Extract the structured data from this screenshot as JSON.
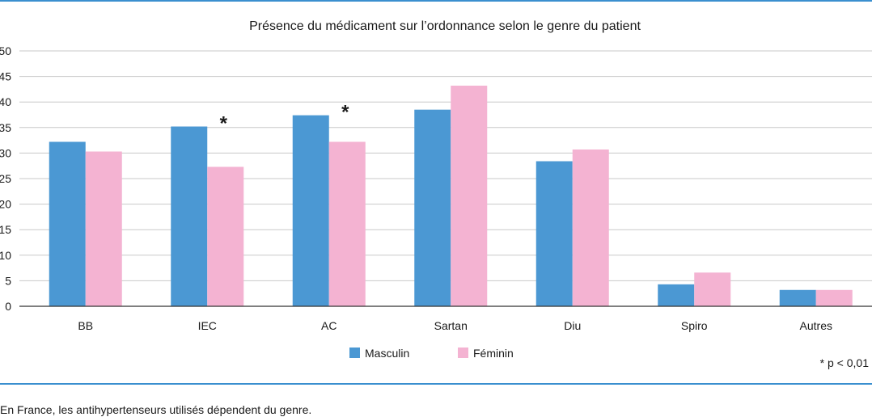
{
  "colors": {
    "rule": "#3a8fcf",
    "grid": "#c8c8c8",
    "axis": "#333333",
    "masculin": "#4b98d3",
    "feminin": "#f4b3d2"
  },
  "caption": "En France, les antihypertenseurs utilisés dépendent du genre.",
  "chart_data": {
    "type": "bar",
    "title": "Présence du médicament sur l’ordonnance selon le genre du patient",
    "categories": [
      "BB",
      "IEC",
      "AC",
      "Sartan",
      "Diu",
      "Spiro",
      "Autres"
    ],
    "series": [
      {
        "name": "Masculin",
        "values": [
          32.2,
          35.2,
          37.4,
          38.5,
          28.4,
          4.3,
          3.2
        ]
      },
      {
        "name": "Féminin",
        "values": [
          30.3,
          27.3,
          32.2,
          43.2,
          30.7,
          6.6,
          3.2
        ]
      }
    ],
    "ylim": [
      0,
      50
    ],
    "yticks": [
      "0",
      "5",
      "10",
      "15",
      "20",
      "25",
      "30",
      "35",
      "40",
      "45",
      "50"
    ],
    "grid": true,
    "legend": "bottom-center",
    "annotations": [
      {
        "category": "IEC",
        "text": "*"
      },
      {
        "category": "AC",
        "text": "*"
      }
    ],
    "footnote": "* p < 0,01"
  }
}
